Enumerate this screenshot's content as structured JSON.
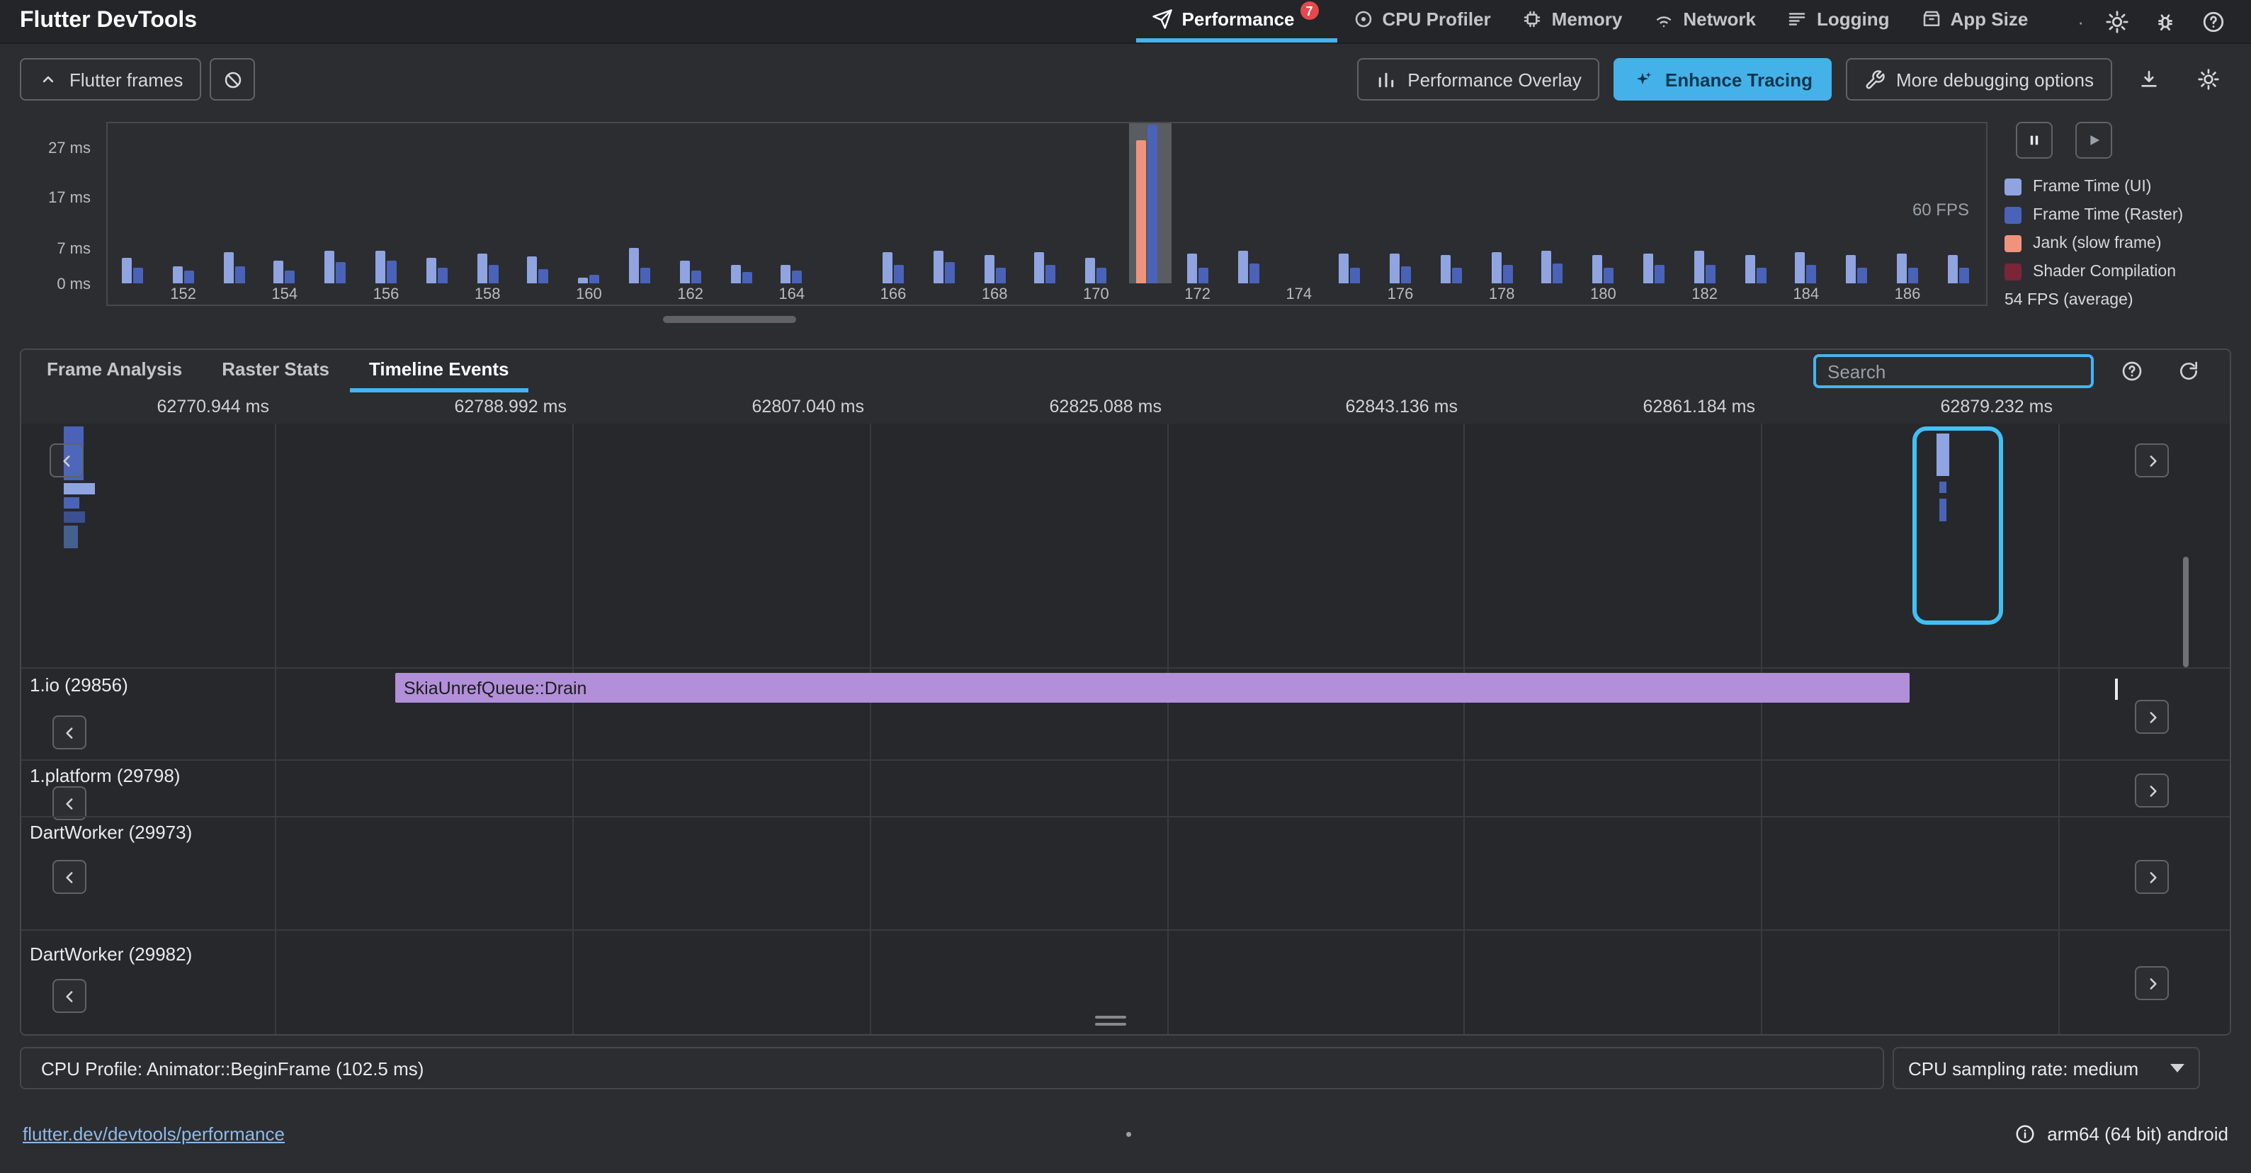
{
  "app_bar": {
    "title": "Flutter DevTools",
    "separator_dot": "·",
    "tabs": [
      {
        "label": "Performance",
        "badge": "7"
      },
      {
        "label": "CPU Profiler"
      },
      {
        "label": "Memory"
      },
      {
        "label": "Network"
      },
      {
        "label": "Logging"
      },
      {
        "label": "App Size"
      }
    ]
  },
  "toolbar": {
    "flutter_frames_label": "Flutter frames",
    "performance_overlay_label": "Performance Overlay",
    "enhance_tracing_label": "Enhance Tracing",
    "more_debugging_label": "More debugging options"
  },
  "frame_chart": {
    "y_axis_labels": [
      "27 ms",
      "17 ms",
      "7 ms",
      "0 ms"
    ],
    "x_axis_labels": [
      "152",
      "154",
      "156",
      "158",
      "160",
      "162",
      "164",
      "166",
      "168",
      "170",
      "172",
      "174",
      "176",
      "178",
      "180",
      "182",
      "184",
      "186"
    ],
    "fps_label": "60 FPS",
    "average_fps_label": "54 FPS (average)",
    "selected_frame": 171,
    "colors": {
      "ui": "#8fa4e0",
      "raster": "#4a63b8",
      "jank": "#f0937d",
      "shader": "#7a2538",
      "selected_bg": "#595c60"
    },
    "legend": [
      {
        "label": "Frame Time (UI)",
        "color": "#8fa4e0"
      },
      {
        "label": "Frame Time (Raster)",
        "color": "#4a63b8"
      },
      {
        "label": "Jank (slow frame)",
        "color": "#f0937d"
      },
      {
        "label": "Shader Compilation",
        "color": "#7a2538"
      }
    ],
    "frames": [
      {
        "n": 151,
        "ui": 5.2,
        "raster": 3.0
      },
      {
        "n": 152,
        "ui": 3.4,
        "raster": 2.4
      },
      {
        "n": 153,
        "ui": 6.2,
        "raster": 3.4
      },
      {
        "n": 154,
        "ui": 4.4,
        "raster": 2.6
      },
      {
        "n": 155,
        "ui": 6.4,
        "raster": 4.2
      },
      {
        "n": 156,
        "ui": 6.6,
        "raster": 4.4
      },
      {
        "n": 157,
        "ui": 5.2,
        "raster": 3.0
      },
      {
        "n": 158,
        "ui": 5.8,
        "raster": 3.6
      },
      {
        "n": 159,
        "ui": 5.4,
        "raster": 2.8
      },
      {
        "n": 160,
        "ui": 1.2,
        "raster": 1.6
      },
      {
        "n": 161,
        "ui": 7.0,
        "raster": 3.2
      },
      {
        "n": 162,
        "ui": 4.4,
        "raster": 2.6
      },
      {
        "n": 163,
        "ui": 3.6,
        "raster": 2.2
      },
      {
        "n": 164,
        "ui": 3.8,
        "raster": 2.6
      },
      {
        "n": 165,
        "ui": 0,
        "raster": 0
      },
      {
        "n": 166,
        "ui": 6.2,
        "raster": 3.6
      },
      {
        "n": 167,
        "ui": 6.6,
        "raster": 4.2
      },
      {
        "n": 168,
        "ui": 5.6,
        "raster": 3.2
      },
      {
        "n": 169,
        "ui": 6.2,
        "raster": 3.8
      },
      {
        "n": 170,
        "ui": 5.2,
        "raster": 3.0
      },
      {
        "n": 171,
        "ui": 28.5,
        "raster": 31.5,
        "jank": true
      },
      {
        "n": 172,
        "ui": 5.8,
        "raster": 3.0
      },
      {
        "n": 173,
        "ui": 6.6,
        "raster": 4.0
      },
      {
        "n": 174,
        "ui": 0,
        "raster": 0
      },
      {
        "n": 175,
        "ui": 5.8,
        "raster": 3.2
      },
      {
        "n": 176,
        "ui": 6.0,
        "raster": 3.4
      },
      {
        "n": 177,
        "ui": 5.6,
        "raster": 3.0
      },
      {
        "n": 178,
        "ui": 6.2,
        "raster": 3.8
      },
      {
        "n": 179,
        "ui": 6.6,
        "raster": 4.0
      },
      {
        "n": 180,
        "ui": 5.6,
        "raster": 3.0
      },
      {
        "n": 181,
        "ui": 6.0,
        "raster": 3.6
      },
      {
        "n": 182,
        "ui": 6.6,
        "raster": 3.6
      },
      {
        "n": 183,
        "ui": 5.6,
        "raster": 3.0
      },
      {
        "n": 184,
        "ui": 6.2,
        "raster": 3.6
      },
      {
        "n": 185,
        "ui": 5.6,
        "raster": 3.0
      },
      {
        "n": 186,
        "ui": 6.0,
        "raster": 3.2
      },
      {
        "n": 187,
        "ui": 5.6,
        "raster": 3.0
      }
    ]
  },
  "analysis_tabs": [
    {
      "label": "Frame Analysis"
    },
    {
      "label": "Raster Stats"
    },
    {
      "label": "Timeline Events"
    }
  ],
  "search": {
    "placeholder": "Search"
  },
  "timeline": {
    "timestamps": [
      "62770.944 ms",
      "62788.992 ms",
      "62807.040 ms",
      "62825.088 ms",
      "62843.136 ms",
      "62861.184 ms",
      "62879.232 ms"
    ],
    "threads": [
      {
        "name": "1.io (29856)",
        "event": {
          "label": "SkiaUnrefQueue::Drain",
          "color": "#b28fd9"
        }
      },
      {
        "name": "1.platform (29798)"
      },
      {
        "name": "DartWorker (29973)"
      },
      {
        "name": "DartWorker (29982)"
      }
    ]
  },
  "cpu_profile": {
    "title": "CPU Profile: Animator::BeginFrame (102.5 ms)",
    "sampling_rate_label": "CPU sampling rate: medium"
  },
  "footer": {
    "link": "flutter.dev/devtools/performance",
    "dot": "•",
    "platform": "arm64 (64 bit) android"
  }
}
